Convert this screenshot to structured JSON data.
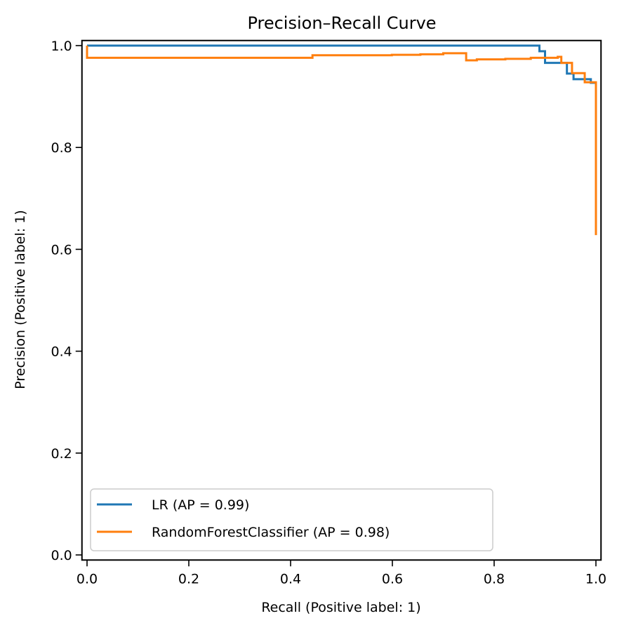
{
  "chart_data": {
    "type": "line",
    "title": "Precision–Recall Curve",
    "xlabel": "Recall (Positive label: 1)",
    "ylabel": "Precision (Positive label: 1)",
    "xlim": [
      -0.01,
      1.01
    ],
    "ylim": [
      -0.01,
      1.01
    ],
    "xticks": [
      0.0,
      0.2,
      0.4,
      0.6,
      0.8,
      1.0
    ],
    "xtick_labels": [
      "0.0",
      "0.2",
      "0.4",
      "0.6",
      "0.8",
      "1.0"
    ],
    "yticks": [
      0.0,
      0.2,
      0.4,
      0.6,
      0.8,
      1.0
    ],
    "ytick_labels": [
      "0.0",
      "0.2",
      "0.4",
      "0.6",
      "0.8",
      "1.0"
    ],
    "grid": false,
    "legend_position": "lower-left",
    "step": "post",
    "series": [
      {
        "name": "LR (AP = 0.99)",
        "color": "#1f77b4",
        "points": [
          [
            0.0,
            1.0
          ],
          [
            0.889,
            1.0
          ],
          [
            0.889,
            0.989
          ],
          [
            0.9,
            0.989
          ],
          [
            0.9,
            0.966
          ],
          [
            0.943,
            0.966
          ],
          [
            0.943,
            0.945
          ],
          [
            0.956,
            0.945
          ],
          [
            0.956,
            0.934
          ],
          [
            0.99,
            0.934
          ],
          [
            0.99,
            0.927
          ],
          [
            1.0,
            0.927
          ]
        ]
      },
      {
        "name": "RandomForestClassifier (AP = 0.98)",
        "color": "#ff7f0e",
        "points": [
          [
            0.0,
            1.0
          ],
          [
            0.0,
            0.976
          ],
          [
            0.443,
            0.976
          ],
          [
            0.443,
            0.981
          ],
          [
            0.599,
            0.981
          ],
          [
            0.599,
            0.982
          ],
          [
            0.655,
            0.982
          ],
          [
            0.655,
            0.983
          ],
          [
            0.7,
            0.983
          ],
          [
            0.7,
            0.985
          ],
          [
            0.745,
            0.985
          ],
          [
            0.745,
            0.971
          ],
          [
            0.766,
            0.971
          ],
          [
            0.766,
            0.973
          ],
          [
            0.822,
            0.973
          ],
          [
            0.822,
            0.974
          ],
          [
            0.872,
            0.974
          ],
          [
            0.872,
            0.976
          ],
          [
            0.925,
            0.976
          ],
          [
            0.925,
            0.978
          ],
          [
            0.932,
            0.978
          ],
          [
            0.932,
            0.966
          ],
          [
            0.953,
            0.966
          ],
          [
            0.953,
            0.946
          ],
          [
            0.978,
            0.946
          ],
          [
            0.978,
            0.928
          ],
          [
            1.0,
            0.928
          ],
          [
            1.0,
            0.628
          ]
        ]
      }
    ]
  }
}
